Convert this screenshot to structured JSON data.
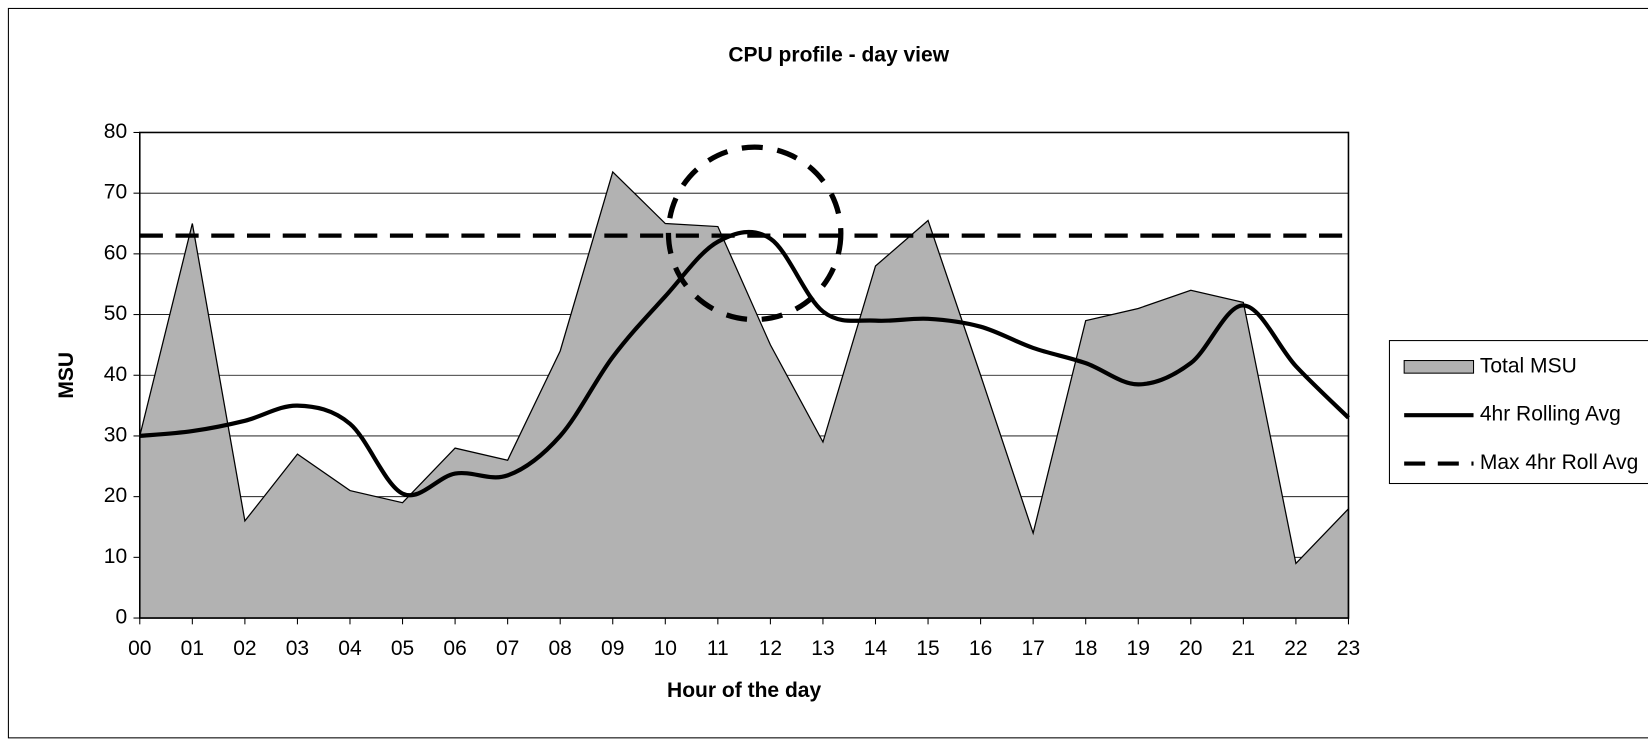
{
  "chart_data": {
    "type": "area-line",
    "title": "CPU profile - day view",
    "x_label": "Hour of the day",
    "y_label": "MSU",
    "categories": [
      "00",
      "01",
      "02",
      "03",
      "04",
      "05",
      "06",
      "07",
      "08",
      "09",
      "10",
      "11",
      "12",
      "13",
      "14",
      "15",
      "16",
      "17",
      "18",
      "19",
      "20",
      "21",
      "22",
      "23"
    ],
    "series": [
      {
        "name": "Total MSU",
        "style": "area",
        "color": "#b2b2b2",
        "values": [
          30,
          65,
          16,
          27,
          21,
          19,
          28,
          26,
          44,
          73.5,
          65,
          64.5,
          45,
          29,
          58,
          65.5,
          40,
          14,
          49,
          51,
          54,
          52,
          9,
          18
        ]
      },
      {
        "name": "4hr Rolling Avg",
        "style": "smooth",
        "color": "#000000",
        "values": [
          30,
          30.8,
          32.5,
          35,
          32,
          20.5,
          23.8,
          23.5,
          30,
          43,
          53,
          62,
          62.5,
          50.5,
          49,
          49.3,
          48,
          44.5,
          42,
          38.5,
          42,
          51.5,
          41.5,
          33
        ]
      },
      {
        "name": "Max 4hr Roll Avg",
        "style": "dashed",
        "color": "#000000",
        "values": [
          63,
          63,
          63,
          63,
          63,
          63,
          63,
          63,
          63,
          63,
          63,
          63,
          63,
          63,
          63,
          63,
          63,
          63,
          63,
          63,
          63,
          63,
          63,
          63
        ]
      }
    ],
    "ylim": [
      0,
      80
    ],
    "yticks": [
      0,
      10,
      20,
      30,
      40,
      50,
      60,
      70,
      80
    ],
    "grid": true,
    "legend": "right"
  }
}
